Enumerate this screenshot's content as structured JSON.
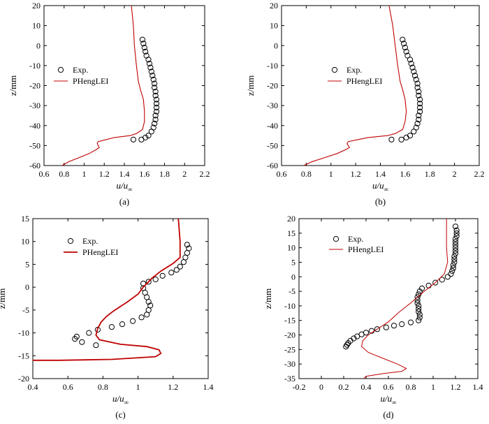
{
  "chart_data": [
    {
      "panel": "(a)",
      "type": "scatter",
      "xlabel_main": "u/u",
      "xlabel_sub": "∞",
      "ylabel": "z/mm",
      "xlim": [
        0.6,
        2.2
      ],
      "ylim": [
        -60,
        20
      ],
      "xticks": [
        0.6,
        0.8,
        1.0,
        1.2,
        1.4,
        1.6,
        1.8,
        2.0,
        2.2
      ],
      "yticks": [
        -60,
        -50,
        -40,
        -30,
        -20,
        -10,
        0,
        10,
        20
      ],
      "legend_position": "middle-left",
      "series": [
        {
          "name": "Exp.",
          "kind": "marker",
          "color": "#000000",
          "points": [
            [
              1.58,
              3
            ],
            [
              1.59,
              1
            ],
            [
              1.6,
              -1
            ],
            [
              1.61,
              -3
            ],
            [
              1.62,
              -5
            ],
            [
              1.64,
              -7
            ],
            [
              1.65,
              -9
            ],
            [
              1.66,
              -11
            ],
            [
              1.67,
              -13
            ],
            [
              1.68,
              -15
            ],
            [
              1.69,
              -17
            ],
            [
              1.7,
              -19
            ],
            [
              1.7,
              -21
            ],
            [
              1.71,
              -23
            ],
            [
              1.71,
              -25
            ],
            [
              1.72,
              -27
            ],
            [
              1.72,
              -29
            ],
            [
              1.72,
              -31
            ],
            [
              1.72,
              -33
            ],
            [
              1.71,
              -35
            ],
            [
              1.71,
              -37
            ],
            [
              1.7,
              -39
            ],
            [
              1.69,
              -41
            ],
            [
              1.67,
              -43
            ],
            [
              1.64,
              -45
            ],
            [
              1.61,
              -46
            ],
            [
              1.57,
              -47
            ],
            [
              1.49,
              -47
            ]
          ]
        },
        {
          "name": "PHengLEI",
          "kind": "line",
          "color": "#c00000",
          "points": [
            [
              1.47,
              20
            ],
            [
              1.49,
              10
            ],
            [
              1.5,
              0
            ],
            [
              1.52,
              -10
            ],
            [
              1.54,
              -18
            ],
            [
              1.56,
              -22
            ],
            [
              1.59,
              -27
            ],
            [
              1.6,
              -33
            ],
            [
              1.6,
              -38
            ],
            [
              1.58,
              -42
            ],
            [
              1.52,
              -44
            ],
            [
              1.46,
              -45
            ],
            [
              1.3,
              -46
            ],
            [
              1.22,
              -47
            ],
            [
              1.14,
              -48
            ],
            [
              1.13,
              -49
            ],
            [
              1.15,
              -51
            ],
            [
              1.12,
              -52
            ],
            [
              1.05,
              -54
            ],
            [
              0.95,
              -56
            ],
            [
              0.85,
              -58
            ],
            [
              0.78,
              -60
            ]
          ]
        }
      ]
    },
    {
      "panel": "(b)",
      "type": "scatter",
      "xlabel_main": "u/u",
      "xlabel_sub": "∞",
      "ylabel": "z/mm",
      "xlim": [
        0.6,
        2.2
      ],
      "ylim": [
        -60,
        20
      ],
      "xticks": [
        0.6,
        0.8,
        1.0,
        1.2,
        1.4,
        1.6,
        1.8,
        2.0,
        2.2
      ],
      "yticks": [
        -60,
        -50,
        -40,
        -30,
        -20,
        -10,
        0,
        10,
        20
      ],
      "legend_position": "middle-left",
      "series": [
        {
          "name": "Exp.",
          "kind": "marker",
          "color": "#000000",
          "points": [
            [
              1.58,
              3
            ],
            [
              1.59,
              1
            ],
            [
              1.6,
              -1
            ],
            [
              1.61,
              -3
            ],
            [
              1.62,
              -5
            ],
            [
              1.64,
              -7
            ],
            [
              1.65,
              -9
            ],
            [
              1.66,
              -11
            ],
            [
              1.67,
              -13
            ],
            [
              1.68,
              -15
            ],
            [
              1.69,
              -17
            ],
            [
              1.7,
              -19
            ],
            [
              1.7,
              -21
            ],
            [
              1.71,
              -23
            ],
            [
              1.71,
              -25
            ],
            [
              1.72,
              -27
            ],
            [
              1.72,
              -29
            ],
            [
              1.72,
              -31
            ],
            [
              1.72,
              -33
            ],
            [
              1.71,
              -35
            ],
            [
              1.71,
              -37
            ],
            [
              1.7,
              -39
            ],
            [
              1.69,
              -41
            ],
            [
              1.67,
              -43
            ],
            [
              1.64,
              -45
            ],
            [
              1.61,
              -46
            ],
            [
              1.57,
              -47
            ],
            [
              1.49,
              -47
            ]
          ]
        },
        {
          "name": "PHengLEI",
          "kind": "line",
          "color": "#c00000",
          "points": [
            [
              1.47,
              20
            ],
            [
              1.5,
              10
            ],
            [
              1.52,
              0
            ],
            [
              1.54,
              -10
            ],
            [
              1.56,
              -18
            ],
            [
              1.58,
              -22
            ],
            [
              1.6,
              -27
            ],
            [
              1.61,
              -33
            ],
            [
              1.6,
              -38
            ],
            [
              1.58,
              -42
            ],
            [
              1.52,
              -44
            ],
            [
              1.46,
              -45
            ],
            [
              1.3,
              -46
            ],
            [
              1.22,
              -47
            ],
            [
              1.14,
              -48
            ],
            [
              1.13,
              -49
            ],
            [
              1.15,
              -51
            ],
            [
              1.12,
              -52
            ],
            [
              1.05,
              -54
            ],
            [
              0.95,
              -56
            ],
            [
              0.85,
              -58
            ],
            [
              0.78,
              -60
            ]
          ]
        }
      ]
    },
    {
      "panel": "(c)",
      "type": "scatter",
      "xlabel_main": "u/u",
      "xlabel_sub": "∞",
      "ylabel": "z/mm",
      "xlim": [
        0.4,
        1.4
      ],
      "ylim": [
        -20,
        15
      ],
      "xticks": [
        0.4,
        0.6,
        0.8,
        1.0,
        1.2,
        1.4
      ],
      "yticks": [
        -20,
        -15,
        -10,
        -5,
        0,
        5,
        10,
        15
      ],
      "legend_position": "top-left",
      "series": [
        {
          "name": "Exp.",
          "kind": "marker",
          "color": "#000000",
          "points": [
            [
              1.28,
              9.3
            ],
            [
              1.29,
              8.5
            ],
            [
              1.28,
              7.5
            ],
            [
              1.27,
              6.5
            ],
            [
              1.26,
              5.5
            ],
            [
              1.24,
              4.5
            ],
            [
              1.22,
              3.8
            ],
            [
              1.19,
              3.2
            ],
            [
              1.14,
              2.5
            ],
            [
              1.1,
              1.7
            ],
            [
              1.06,
              1.2
            ],
            [
              1.03,
              0.8
            ],
            [
              1.03,
              -0.2
            ],
            [
              1.04,
              -1.2
            ],
            [
              1.05,
              -2.2
            ],
            [
              1.06,
              -3.2
            ],
            [
              1.07,
              -4
            ],
            [
              1.06,
              -5
            ],
            [
              1.05,
              -6
            ],
            [
              1.02,
              -6.6
            ],
            [
              0.97,
              -7.4
            ],
            [
              0.91,
              -8.1
            ],
            [
              0.85,
              -8.7
            ],
            [
              0.77,
              -9.3
            ],
            [
              0.72,
              -10
            ],
            [
              0.65,
              -10.8
            ],
            [
              0.64,
              -11.3
            ],
            [
              0.68,
              -12
            ],
            [
              0.76,
              -12.7
            ]
          ]
        },
        {
          "name": "PHengLEI",
          "kind": "line",
          "color": "#c00000",
          "points": [
            [
              1.23,
              15
            ],
            [
              1.24,
              10
            ],
            [
              1.24,
              6.5
            ],
            [
              1.2,
              5.2
            ],
            [
              1.13,
              3.5
            ],
            [
              1.08,
              2
            ],
            [
              1.03,
              0
            ],
            [
              1.0,
              -1.5
            ],
            [
              0.94,
              -3.2
            ],
            [
              0.86,
              -5.2
            ],
            [
              0.82,
              -6.4
            ],
            [
              0.79,
              -7.6
            ],
            [
              0.77,
              -9
            ],
            [
              0.76,
              -10.5
            ],
            [
              0.78,
              -11.5
            ],
            [
              0.9,
              -12.5
            ],
            [
              1.05,
              -13
            ],
            [
              1.12,
              -13.7
            ],
            [
              1.13,
              -14.5
            ],
            [
              1.1,
              -15.2
            ],
            [
              0.85,
              -15.8
            ],
            [
              0.55,
              -16
            ],
            [
              0.4,
              -16
            ]
          ]
        }
      ]
    },
    {
      "panel": "(d)",
      "type": "scatter",
      "xlabel_main": "u/u",
      "xlabel_sub": "∞",
      "ylabel": "z/mm",
      "xlim": [
        -0.2,
        1.4
      ],
      "ylim": [
        -35,
        20
      ],
      "xticks": [
        -0.2,
        0,
        0.2,
        0.4,
        0.6,
        0.8,
        1.0,
        1.2,
        1.4
      ],
      "yticks": [
        -35,
        -30,
        -25,
        -20,
        -15,
        -10,
        -5,
        0,
        5,
        10,
        15,
        20
      ],
      "legend_position": "top-left",
      "series": [
        {
          "name": "Exp.",
          "kind": "marker",
          "color": "#000000",
          "points": [
            [
              1.2,
              17.3
            ],
            [
              1.21,
              16
            ],
            [
              1.21,
              15
            ],
            [
              1.21,
              14
            ],
            [
              1.2,
              13
            ],
            [
              1.2,
              12
            ],
            [
              1.2,
              11
            ],
            [
              1.2,
              10
            ],
            [
              1.2,
              9
            ],
            [
              1.2,
              8
            ],
            [
              1.19,
              7
            ],
            [
              1.19,
              6
            ],
            [
              1.19,
              5
            ],
            [
              1.18,
              4
            ],
            [
              1.18,
              3
            ],
            [
              1.17,
              2
            ],
            [
              1.16,
              1
            ],
            [
              1.13,
              0
            ],
            [
              1.08,
              -1
            ],
            [
              1.02,
              -2
            ],
            [
              0.96,
              -3
            ],
            [
              0.9,
              -4
            ],
            [
              0.88,
              -5
            ],
            [
              0.87,
              -6
            ],
            [
              0.86,
              -7
            ],
            [
              0.86,
              -8
            ],
            [
              0.86,
              -9
            ],
            [
              0.87,
              -10
            ],
            [
              0.87,
              -11
            ],
            [
              0.87,
              -12
            ],
            [
              0.88,
              -13
            ],
            [
              0.88,
              -14
            ],
            [
              0.87,
              -15
            ],
            [
              0.8,
              -15.7
            ],
            [
              0.72,
              -16.3
            ],
            [
              0.65,
              -16.8
            ],
            [
              0.58,
              -17.4
            ],
            [
              0.5,
              -18
            ],
            [
              0.45,
              -18.6
            ],
            [
              0.4,
              -19.2
            ],
            [
              0.36,
              -19.8
            ],
            [
              0.32,
              -20.5
            ],
            [
              0.29,
              -21.2
            ],
            [
              0.26,
              -22
            ],
            [
              0.24,
              -22.8
            ],
            [
              0.23,
              -23.4
            ],
            [
              0.22,
              -24
            ]
          ]
        },
        {
          "name": "PHengLEI",
          "kind": "line",
          "color": "#c00000",
          "points": [
            [
              1.12,
              20
            ],
            [
              1.12,
              15
            ],
            [
              1.12,
              10
            ],
            [
              1.13,
              5
            ],
            [
              1.1,
              1
            ],
            [
              1.02,
              -2
            ],
            [
              0.92,
              -5
            ],
            [
              0.8,
              -9
            ],
            [
              0.7,
              -12
            ],
            [
              0.6,
              -15.5
            ],
            [
              0.5,
              -18
            ],
            [
              0.42,
              -20
            ],
            [
              0.37,
              -22
            ],
            [
              0.36,
              -24
            ],
            [
              0.42,
              -26
            ],
            [
              0.55,
              -28
            ],
            [
              0.68,
              -30
            ],
            [
              0.76,
              -31.5
            ],
            [
              0.72,
              -32.5
            ],
            [
              0.55,
              -33.3
            ],
            [
              0.4,
              -34.2
            ],
            [
              0.38,
              -35
            ]
          ]
        }
      ]
    }
  ]
}
